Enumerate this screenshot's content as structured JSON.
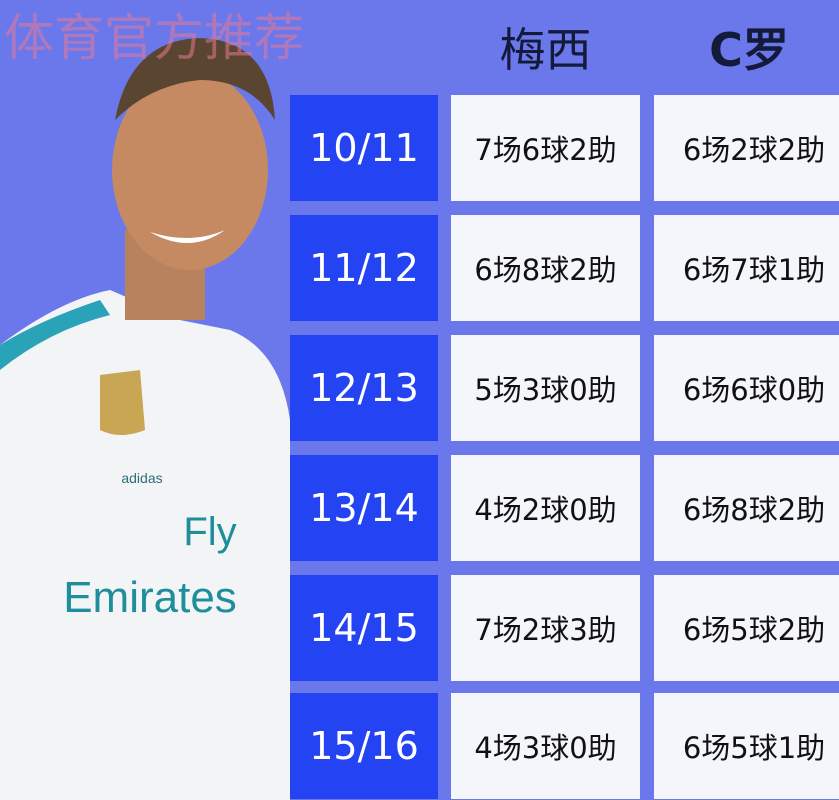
{
  "headers": {
    "messi": "梅西",
    "ronaldo": "C罗"
  },
  "rows": [
    {
      "season": "10/11",
      "messi": "7场6球2助",
      "ronaldo": "6场2球2助"
    },
    {
      "season": "11/12",
      "messi": "6场8球2助",
      "ronaldo": "6场7球1助"
    },
    {
      "season": "12/13",
      "messi": "5场3球0助",
      "ronaldo": "6场6球0助"
    },
    {
      "season": "13/14",
      "messi": "4场2球0助",
      "ronaldo": "6场8球2助"
    },
    {
      "season": "14/15",
      "messi": "7场2球3助",
      "ronaldo": "6场5球2助"
    },
    {
      "season": "15/16",
      "messi": "4场3球0助",
      "ronaldo": "6场5球1助"
    }
  ],
  "jersey": {
    "sponsor_line1": "Fly",
    "sponsor_line2": "Emirates",
    "brand": "adidas"
  },
  "watermark": "体育官方推荐",
  "colors": {
    "background": "#6b78ec",
    "season_box": "#2444f4",
    "cell": "#f4f6fb"
  }
}
